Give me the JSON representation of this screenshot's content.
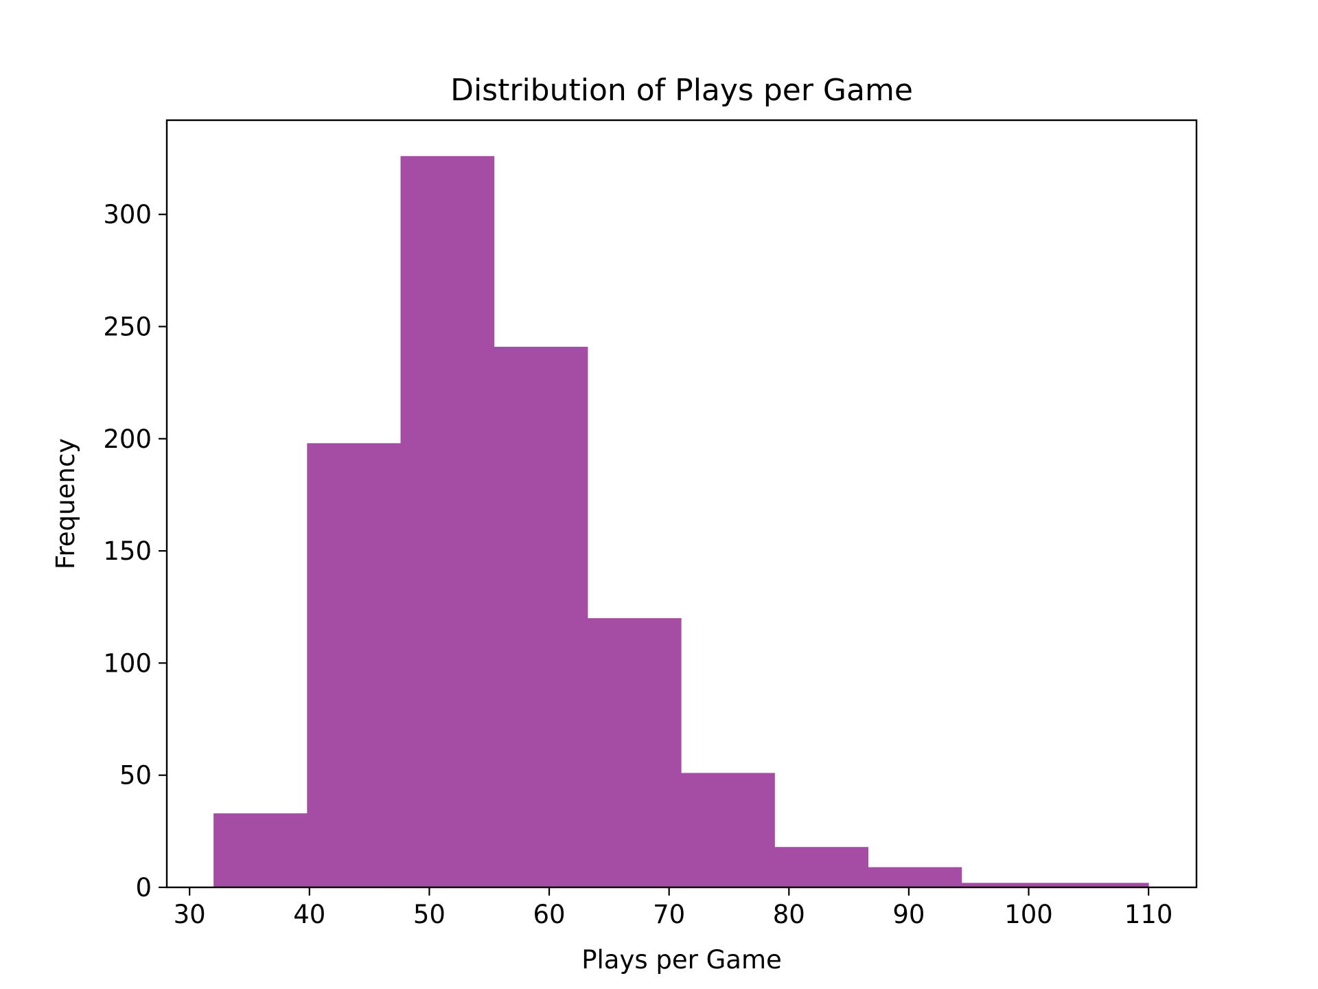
{
  "chart_data": {
    "type": "bar",
    "title": "Distribution of Plays per Game",
    "xlabel": "Plays per Game",
    "ylabel": "Frequency",
    "xlim": [
      28.1,
      114.0
    ],
    "ylim": [
      0,
      342
    ],
    "x_ticks": [
      30,
      40,
      50,
      60,
      70,
      80,
      90,
      100,
      110
    ],
    "y_ticks": [
      0,
      50,
      100,
      150,
      200,
      250,
      300
    ],
    "bin_edges": [
      32.0,
      39.8,
      47.6,
      55.4,
      63.2,
      71.0,
      78.8,
      86.6,
      94.4,
      102.2,
      110.0
    ],
    "values": [
      33,
      198,
      326,
      241,
      120,
      51,
      18,
      9,
      2,
      2
    ],
    "grid": false,
    "colors": {
      "bar": "#a54ca4",
      "axes": "#000000",
      "background": "#ffffff"
    }
  }
}
